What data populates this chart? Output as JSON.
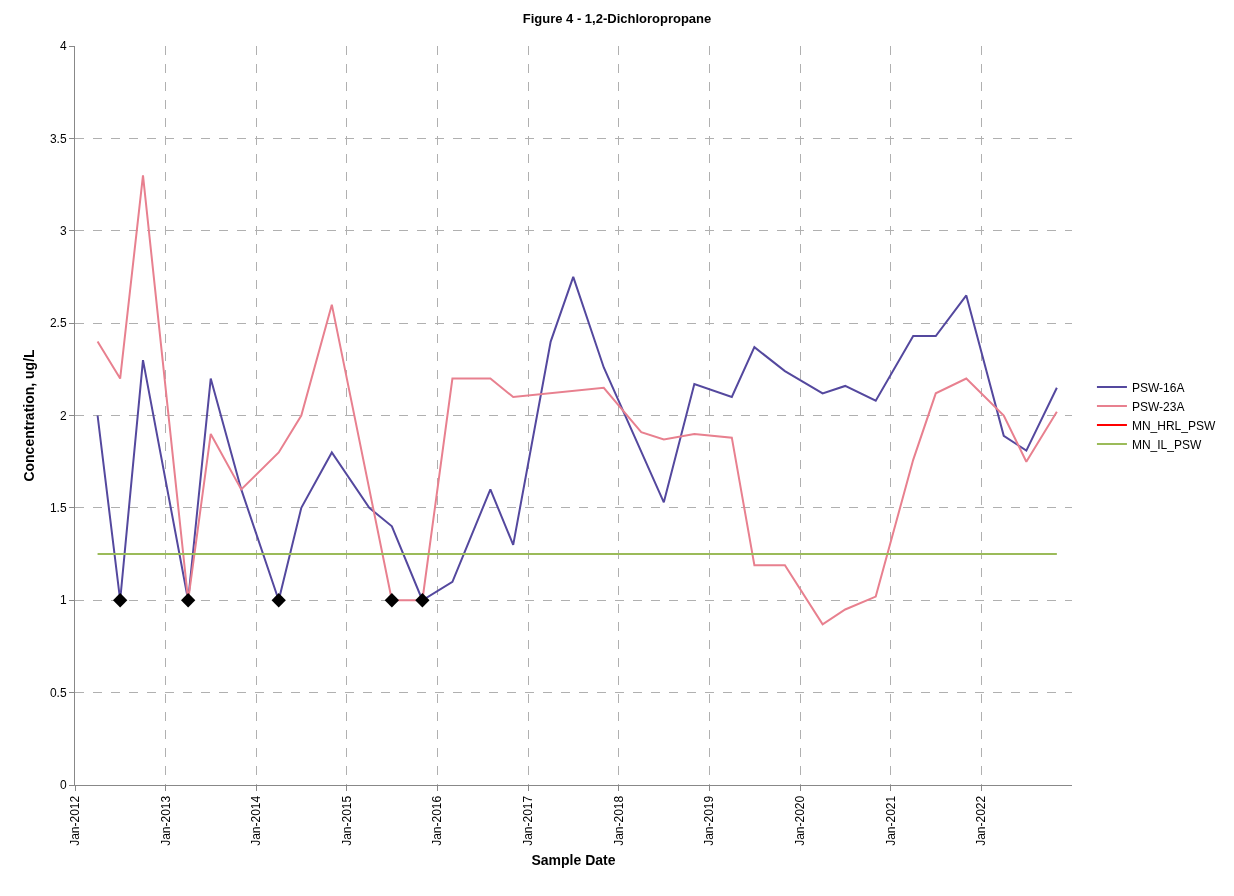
{
  "chart_data": {
    "type": "line",
    "title": "Figure 4 - 1,2-Dichloropropane",
    "xlabel": "Sample Date",
    "ylabel": "Concentration, ug/L",
    "xlim": [
      "2012-01",
      "2023-01"
    ],
    "xticks": [
      {
        "value": "2012-01",
        "label": "Jan-2012"
      },
      {
        "value": "2013-01",
        "label": "Jan-2013"
      },
      {
        "value": "2014-01",
        "label": "Jan-2014"
      },
      {
        "value": "2015-01",
        "label": "Jan-2015"
      },
      {
        "value": "2016-01",
        "label": "Jan-2016"
      },
      {
        "value": "2017-01",
        "label": "Jan-2017"
      },
      {
        "value": "2018-01",
        "label": "Jan-2018"
      },
      {
        "value": "2019-01",
        "label": "Jan-2019"
      },
      {
        "value": "2020-01",
        "label": "Jan-2020"
      },
      {
        "value": "2021-01",
        "label": "Jan-2021"
      },
      {
        "value": "2022-01",
        "label": "Jan-2022"
      }
    ],
    "ylim": [
      0,
      4
    ],
    "yticks": [
      0,
      0.5,
      1,
      1.5,
      2,
      2.5,
      3,
      3.5,
      4
    ],
    "grid": true,
    "legend": "right",
    "marker": "none",
    "line_style": "solid",
    "series": [
      {
        "name": "PSW-16A",
        "color": "#54489e",
        "x": [
          "2012-04",
          "2012-07",
          "2012-10",
          "2013-04",
          "2013-07",
          "2013-11",
          "2014-04",
          "2014-07",
          "2014-11",
          "2015-04",
          "2015-07",
          "2015-11",
          "2016-03",
          "2016-08",
          "2016-11",
          "2017-04",
          "2017-07",
          "2017-11",
          "2018-07",
          "2018-11",
          "2019-04",
          "2019-07",
          "2019-11",
          "2020-04",
          "2020-07",
          "2020-11",
          "2021-04",
          "2021-07",
          "2021-11",
          "2022-04",
          "2022-07",
          "2022-11"
        ],
        "values": [
          2.0,
          1.0,
          2.3,
          1.0,
          2.2,
          1.6,
          1.0,
          1.5,
          1.8,
          1.5,
          1.4,
          1.0,
          1.1,
          1.6,
          1.3,
          2.4,
          2.75,
          2.26,
          1.53,
          2.17,
          2.1,
          2.37,
          2.24,
          2.12,
          2.16,
          2.08,
          2.43,
          2.43,
          2.65,
          1.89,
          1.81,
          2.15
        ]
      },
      {
        "name": "PSW-23A",
        "color": "#e8808f",
        "x": [
          "2012-04",
          "2012-07",
          "2012-10",
          "2013-04",
          "2013-07",
          "2013-11",
          "2014-04",
          "2014-07",
          "2014-11",
          "2015-07",
          "2015-11",
          "2016-03",
          "2016-08",
          "2016-11",
          "2017-11",
          "2018-04",
          "2018-07",
          "2018-11",
          "2019-04",
          "2019-07",
          "2019-11",
          "2020-04",
          "2020-07",
          "2020-11",
          "2021-04",
          "2021-07",
          "2021-11",
          "2022-04",
          "2022-07",
          "2022-11"
        ],
        "values": [
          2.4,
          2.2,
          3.3,
          1.0,
          1.9,
          1.6,
          1.8,
          2.0,
          2.6,
          1.0,
          1.0,
          2.2,
          2.2,
          2.1,
          2.15,
          1.91,
          1.87,
          1.9,
          1.88,
          1.19,
          1.19,
          0.87,
          0.95,
          1.02,
          1.76,
          2.12,
          2.2,
          2.0,
          1.75,
          2.02
        ]
      },
      {
        "name": "MN_HRL_PSW",
        "color": "#ff0000"
      },
      {
        "name": "MN_IL_PSW",
        "color": "#9bbb59",
        "x": [
          "2012-04",
          "2022-11"
        ],
        "values": [
          1.25,
          1.25
        ]
      },
      {
        "type": "scatter",
        "marker": "diamond",
        "color": "#000000",
        "x": [
          "2012-07",
          "2013-04",
          "2014-04",
          "2015-07",
          "2015-11"
        ],
        "values": [
          1.0,
          1.0,
          1.0,
          1.0,
          1.0
        ]
      }
    ]
  }
}
